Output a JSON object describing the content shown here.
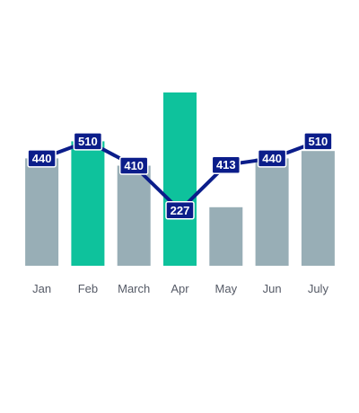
{
  "chart_data": {
    "type": "bar",
    "categories": [
      "Jan",
      "Feb",
      "March",
      "Apr",
      "May",
      "Jun",
      "July"
    ],
    "series": [
      {
        "type": "bar",
        "values": [
          440,
          510,
          410,
          710,
          240,
          440,
          470
        ],
        "colors": [
          "#98aeb6",
          "#0ec29c",
          "#98aeb6",
          "#0ec29c",
          "#98aeb6",
          "#98aeb6",
          "#98aeb6"
        ]
      },
      {
        "type": "line",
        "values": [
          440,
          510,
          410,
          227,
          413,
          440,
          510
        ],
        "color": "#0b1d8a",
        "data_labels": [
          "440",
          "510",
          "410",
          "227",
          "413",
          "440",
          "510"
        ]
      }
    ],
    "ylim": [
      0,
      710
    ],
    "grid": false,
    "legend": "none",
    "title": "",
    "xlabel": "",
    "ylabel": ""
  }
}
